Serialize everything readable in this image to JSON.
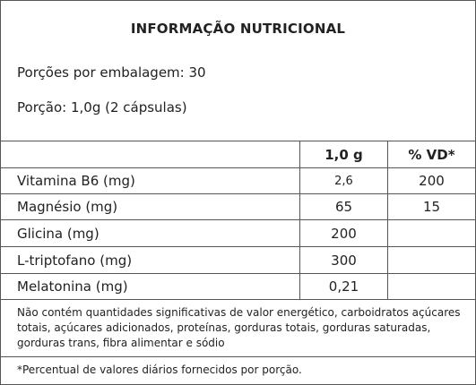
{
  "title": "INFORMAÇÃO NUTRICIONAL",
  "servings_per_package": "Porções por embalagem: 30",
  "portion": "Porção: 1,0g (2 cápsulas)",
  "table": {
    "headers": [
      "",
      "1,0 g",
      "% VD*"
    ],
    "rows": [
      {
        "name": "Vitamina B6 (mg)",
        "amount": "2,6",
        "dv": "200"
      },
      {
        "name": "Magnésio (mg)",
        "amount": "65",
        "dv": "15"
      },
      {
        "name": "Glicina (mg)",
        "amount": "200",
        "dv": ""
      },
      {
        "name": "L-triptofano (mg)",
        "amount": "300",
        "dv": ""
      },
      {
        "name": "Melatonina (mg)",
        "amount": "0,21",
        "dv": ""
      }
    ]
  },
  "note": "Não contém quantidades significativas de valor energético, carboidratos açúcares totais, açúcares adicionados, proteínas, gorduras totais, gorduras saturadas, gorduras trans, fibra alimentar e sódio",
  "footnote": "*Percentual de valores diários fornecidos por porção."
}
